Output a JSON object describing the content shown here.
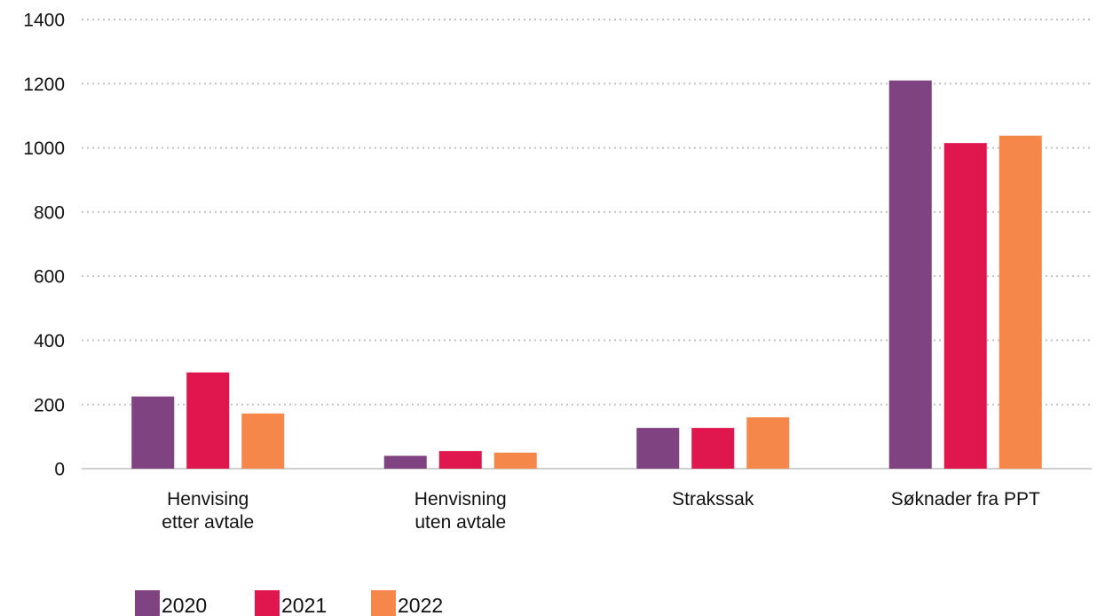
{
  "chart_data": {
    "type": "bar",
    "categories": [
      "Henvising\netter avtale",
      "Henvisning\nuten avtale",
      "Strakssak",
      "Søknader fra PPT"
    ],
    "series": [
      {
        "name": "2020",
        "color": "#7e4380",
        "values": [
          225,
          40,
          127,
          1210
        ]
      },
      {
        "name": "2021",
        "color": "#e0174f",
        "values": [
          300,
          55,
          127,
          1015
        ]
      },
      {
        "name": "2022",
        "color": "#f5874a",
        "values": [
          172,
          50,
          160,
          1038
        ]
      }
    ],
    "ylim": [
      0,
      1400
    ],
    "yticks": [
      0,
      200,
      400,
      600,
      800,
      1000,
      1200,
      1400
    ],
    "grid": true
  }
}
